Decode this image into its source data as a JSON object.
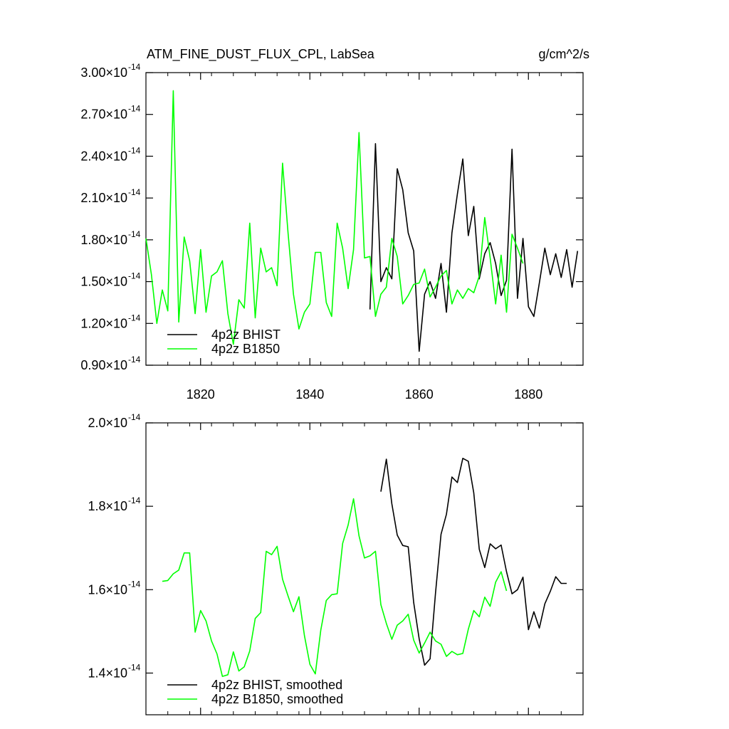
{
  "chart_data": [
    {
      "type": "line",
      "title": "ATM_FINE_DUST_FLUX_CPL, LabSea",
      "units": "g/cm^2/s",
      "xlim": [
        1810,
        1890
      ],
      "ylim": [
        0.9,
        3.0
      ],
      "y_exponent": "-14",
      "yticks": [
        0.9,
        1.2,
        1.5,
        1.8,
        2.1,
        2.4,
        2.7,
        3.0
      ],
      "ytick_labels": [
        "0.90",
        "1.20",
        "1.50",
        "1.80",
        "2.10",
        "2.40",
        "2.70",
        "3.00"
      ],
      "xticks": [
        1820,
        1840,
        1860,
        1880
      ],
      "xtick_labels": [
        "1820",
        "1840",
        "1860",
        "1880"
      ],
      "legend_position": "bottom-left",
      "series": [
        {
          "name": "4p2z BHIST",
          "color": "#000000",
          "x": [
            1851,
            1852,
            1853,
            1854,
            1855,
            1856,
            1857,
            1858,
            1859,
            1860,
            1861,
            1862,
            1863,
            1864,
            1865,
            1866,
            1867,
            1868,
            1869,
            1870,
            1871,
            1872,
            1873,
            1874,
            1875,
            1876,
            1877,
            1878,
            1879,
            1880,
            1881,
            1882,
            1883,
            1884,
            1885,
            1886,
            1887,
            1888,
            1889
          ],
          "values": [
            1.3,
            2.49,
            1.5,
            1.6,
            1.52,
            2.31,
            2.16,
            1.85,
            1.72,
            1.0,
            1.41,
            1.5,
            1.38,
            1.63,
            1.28,
            1.85,
            2.13,
            2.38,
            1.83,
            2.04,
            1.52,
            1.7,
            1.78,
            1.63,
            1.4,
            1.51,
            2.45,
            1.38,
            1.81,
            1.32,
            1.25,
            1.49,
            1.74,
            1.55,
            1.7,
            1.53,
            1.73,
            1.46,
            1.72
          ]
        },
        {
          "name": "4p2z B1850",
          "color": "#00ff00",
          "x": [
            1810,
            1811,
            1812,
            1813,
            1814,
            1815,
            1816,
            1817,
            1818,
            1819,
            1820,
            1821,
            1822,
            1823,
            1824,
            1825,
            1826,
            1827,
            1828,
            1829,
            1830,
            1831,
            1832,
            1833,
            1834,
            1835,
            1836,
            1837,
            1838,
            1839,
            1840,
            1841,
            1842,
            1843,
            1844,
            1845,
            1846,
            1847,
            1848,
            1849,
            1850,
            1851,
            1852,
            1853,
            1854,
            1855,
            1856,
            1857,
            1858,
            1859,
            1860,
            1861,
            1862,
            1863,
            1864,
            1865,
            1866,
            1867,
            1868,
            1869,
            1870,
            1871,
            1872,
            1873,
            1874,
            1875,
            1876,
            1877,
            1878,
            1879
          ],
          "values": [
            1.81,
            1.55,
            1.2,
            1.44,
            1.29,
            2.87,
            1.21,
            1.82,
            1.65,
            1.27,
            1.73,
            1.28,
            1.54,
            1.57,
            1.65,
            1.27,
            1.05,
            1.37,
            1.31,
            1.92,
            1.24,
            1.74,
            1.57,
            1.6,
            1.47,
            2.35,
            1.85,
            1.41,
            1.16,
            1.28,
            1.34,
            1.71,
            1.71,
            1.35,
            1.25,
            1.92,
            1.74,
            1.45,
            1.73,
            2.57,
            1.67,
            1.68,
            1.25,
            1.41,
            1.46,
            1.81,
            1.68,
            1.34,
            1.4,
            1.48,
            1.49,
            1.59,
            1.39,
            1.46,
            1.54,
            1.58,
            1.34,
            1.44,
            1.38,
            1.45,
            1.42,
            1.54,
            1.96,
            1.67,
            1.34,
            1.69,
            1.28,
            1.84,
            1.74,
            1.63
          ]
        }
      ]
    },
    {
      "type": "line",
      "xlim": [
        1810,
        1890
      ],
      "ylim": [
        1.3,
        2.0
      ],
      "y_exponent": "-14",
      "yticks": [
        1.4,
        1.6,
        1.8,
        2.0
      ],
      "ytick_labels": [
        "1.4",
        "1.6",
        "1.8",
        "2.0"
      ],
      "xticks": [
        1820,
        1840,
        1860,
        1880
      ],
      "legend_position": "bottom-left",
      "series": [
        {
          "name": "4p2z BHIST, smoothed",
          "color": "#000000",
          "x": [
            1853,
            1854,
            1855,
            1856,
            1857,
            1858,
            1859,
            1860,
            1861,
            1862,
            1863,
            1864,
            1865,
            1866,
            1867,
            1868,
            1869,
            1870,
            1871,
            1872,
            1873,
            1874,
            1875,
            1876,
            1877,
            1878,
            1879,
            1880,
            1881,
            1882,
            1883,
            1884,
            1885,
            1886,
            1887
          ],
          "values": [
            1.835,
            1.913,
            1.806,
            1.731,
            1.706,
            1.703,
            1.569,
            1.482,
            1.419,
            1.434,
            1.593,
            1.733,
            1.781,
            1.87,
            1.857,
            1.915,
            1.908,
            1.832,
            1.697,
            1.653,
            1.71,
            1.698,
            1.707,
            1.643,
            1.59,
            1.6,
            1.63,
            1.504,
            1.547,
            1.508,
            1.566,
            1.596,
            1.631,
            1.615,
            1.615
          ]
        },
        {
          "name": "4p2z B1850, smoothed",
          "color": "#00ff00",
          "x": [
            1813,
            1814,
            1815,
            1816,
            1817,
            1818,
            1819,
            1820,
            1821,
            1822,
            1823,
            1824,
            1825,
            1826,
            1827,
            1828,
            1829,
            1830,
            1831,
            1832,
            1833,
            1834,
            1835,
            1836,
            1837,
            1838,
            1839,
            1840,
            1841,
            1842,
            1843,
            1844,
            1845,
            1846,
            1847,
            1848,
            1849,
            1850,
            1851,
            1852,
            1853,
            1854,
            1855,
            1856,
            1857,
            1858,
            1859,
            1860,
            1861,
            1862,
            1863,
            1864,
            1865,
            1866,
            1867,
            1868,
            1869,
            1870,
            1871,
            1872,
            1873,
            1874,
            1875,
            1876
          ],
          "values": [
            1.62,
            1.622,
            1.638,
            1.647,
            1.688,
            1.688,
            1.498,
            1.55,
            1.525,
            1.477,
            1.446,
            1.392,
            1.396,
            1.451,
            1.405,
            1.415,
            1.453,
            1.531,
            1.545,
            1.692,
            1.684,
            1.704,
            1.625,
            1.585,
            1.547,
            1.583,
            1.49,
            1.421,
            1.398,
            1.503,
            1.574,
            1.588,
            1.59,
            1.711,
            1.755,
            1.818,
            1.729,
            1.676,
            1.681,
            1.692,
            1.564,
            1.519,
            1.481,
            1.515,
            1.525,
            1.541,
            1.479,
            1.448,
            1.472,
            1.498,
            1.477,
            1.469,
            1.44,
            1.452,
            1.444,
            1.447,
            1.505,
            1.55,
            1.535,
            1.582,
            1.56,
            1.618,
            1.643,
            1.597
          ]
        }
      ]
    }
  ]
}
